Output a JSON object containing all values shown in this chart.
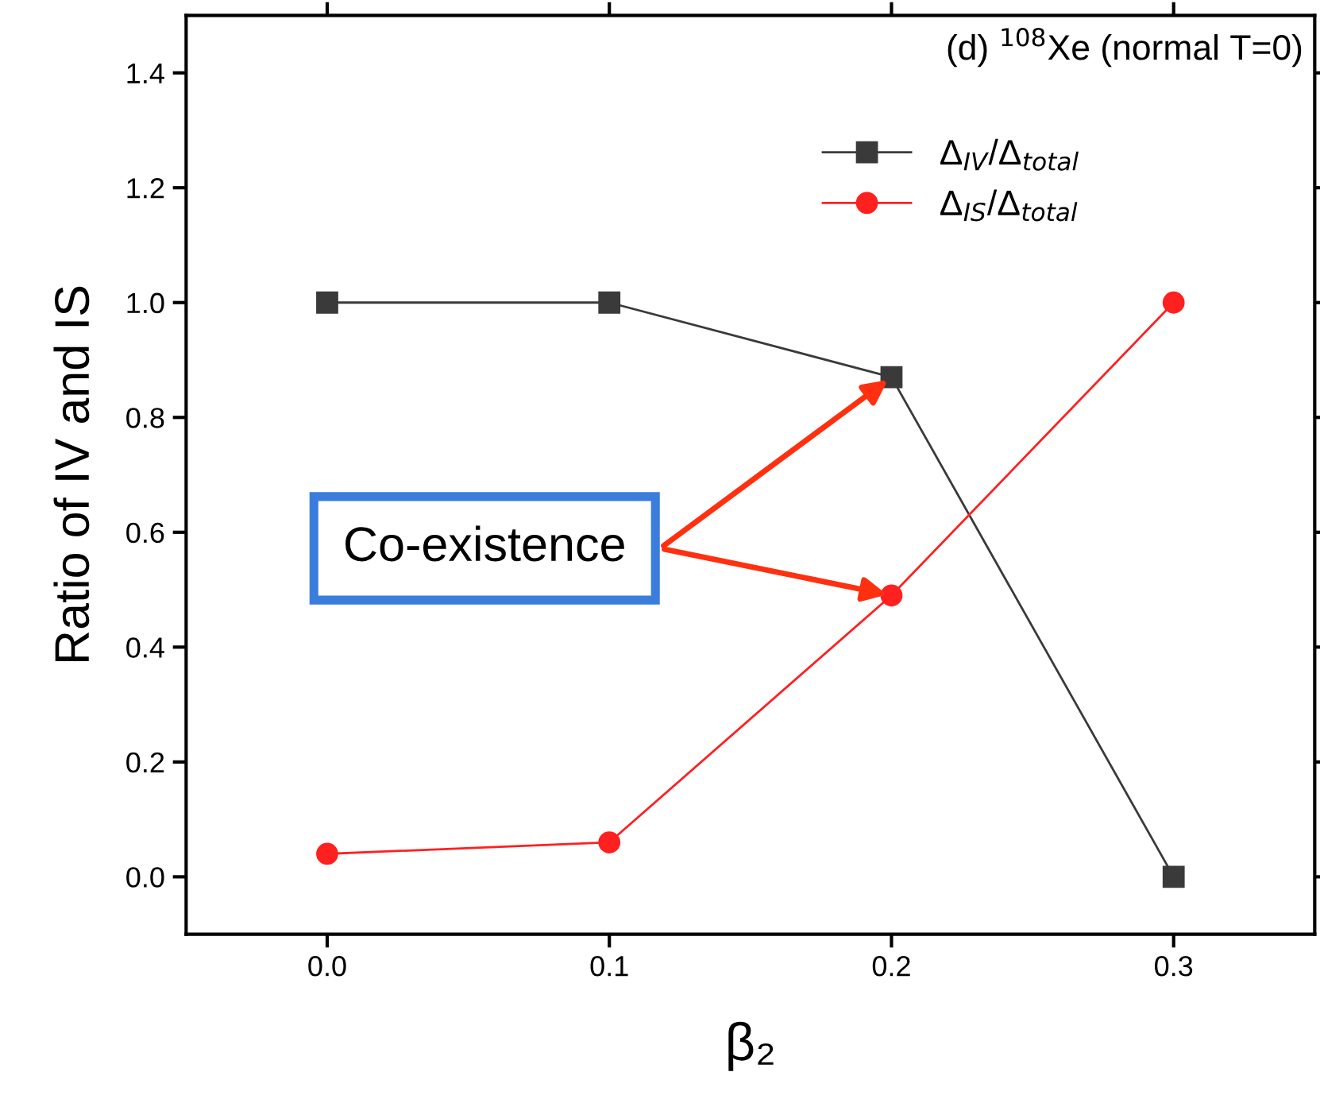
{
  "chart_data": {
    "type": "line",
    "x": [
      0.0,
      0.1,
      0.2,
      0.3
    ],
    "xlabel": "β₂",
    "ylabel": "Ratio of IV and IS",
    "series": [
      {
        "name": "Δ$_{IV}$/Δ$_{total}$",
        "color": "#3a3a3a",
        "marker": "square",
        "values": [
          1.0,
          1.0,
          0.87,
          0.0
        ]
      },
      {
        "name": "Δ$_{IS}$/Δ$_{total}$",
        "color": "#ff2020",
        "marker": "circle",
        "values": [
          0.04,
          0.06,
          0.49,
          1.0
        ]
      }
    ],
    "xlim": [
      -0.05,
      0.35
    ],
    "xticks": [
      {
        "value": 0,
        "label": "0.0"
      },
      0.1,
      0.2,
      0.3
    ],
    "ylim": [
      -0.1,
      1.5
    ],
    "yticks": [
      {
        "value": 0,
        "label": "0.0"
      },
      0.2,
      0.4,
      0.6,
      0.8,
      {
        "value": 1,
        "label": "1.0"
      },
      1.2,
      1.4
    ],
    "legend": "top right",
    "grid": false,
    "annotations": [
      "(d) $^{108}$Xe (normal T=0)",
      {
        "text": "Co-existence",
        "x": 0.2,
        "y": 0.87
      }
    ]
  }
}
